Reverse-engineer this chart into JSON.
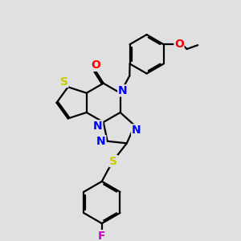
{
  "background_color": "#e0e0e0",
  "bond_color": "#000000",
  "atom_colors": {
    "S": "#cccc00",
    "N": "#0000ff",
    "O": "#ff0000",
    "F": "#cc00cc",
    "C": "#000000"
  },
  "figsize": [
    3.0,
    3.0
  ],
  "dpi": 100,
  "lw": 1.6,
  "fontsize": 9
}
